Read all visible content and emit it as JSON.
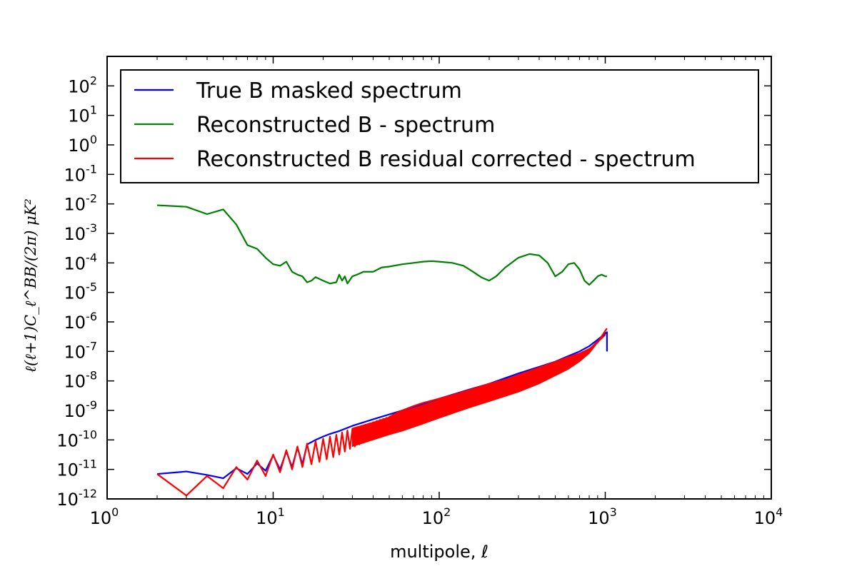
{
  "chart_data": {
    "type": "line",
    "title": "",
    "xlabel": "multipole, ℓ",
    "ylabel": "ℓ(ℓ+1)C_ℓ^BB/(2π)  μK²",
    "x_scale": "log",
    "y_scale": "log",
    "xlim": [
      1,
      10000
    ],
    "ylim": [
      1e-12,
      1000
    ],
    "x_ticks": [
      {
        "base": "10",
        "exp": "0"
      },
      {
        "base": "10",
        "exp": "1"
      },
      {
        "base": "10",
        "exp": "2"
      },
      {
        "base": "10",
        "exp": "3"
      },
      {
        "base": "10",
        "exp": "4"
      }
    ],
    "y_ticks": [
      {
        "base": "10",
        "exp": "-12"
      },
      {
        "base": "10",
        "exp": "-11"
      },
      {
        "base": "10",
        "exp": "-10"
      },
      {
        "base": "10",
        "exp": "-9"
      },
      {
        "base": "10",
        "exp": "-8"
      },
      {
        "base": "10",
        "exp": "-7"
      },
      {
        "base": "10",
        "exp": "-6"
      },
      {
        "base": "10",
        "exp": "-5"
      },
      {
        "base": "10",
        "exp": "-4"
      },
      {
        "base": "10",
        "exp": "-3"
      },
      {
        "base": "10",
        "exp": "-2"
      },
      {
        "base": "10",
        "exp": "-1"
      },
      {
        "base": "10",
        "exp": "0"
      },
      {
        "base": "10",
        "exp": "1"
      },
      {
        "base": "10",
        "exp": "2"
      }
    ],
    "legend": {
      "placement": "top-left",
      "frame": true
    },
    "series": [
      {
        "name": "True B masked spectrum",
        "color": "#0000ff",
        "x": [
          2,
          3,
          4,
          5,
          6,
          7,
          8,
          9,
          10,
          11,
          12,
          13,
          14,
          15,
          16,
          18,
          20,
          22,
          25,
          30,
          40,
          60,
          100,
          150,
          200,
          300,
          400,
          500,
          600,
          700,
          800,
          900,
          1000,
          1024,
          1024
        ],
        "y": [
          7e-12,
          8.5e-12,
          6.5e-12,
          5e-12,
          1.1e-11,
          7e-12,
          1.6e-11,
          9e-12,
          3e-11,
          1e-11,
          4e-11,
          1.2e-11,
          5.5e-11,
          1.5e-11,
          7e-11,
          1e-10,
          1.3e-10,
          1.6e-10,
          2e-10,
          3e-10,
          5e-10,
          1e-09,
          2.5e-09,
          5e-09,
          8e-09,
          1.8e-08,
          3e-08,
          4.5e-08,
          7e-08,
          1e-07,
          1.5e-07,
          2.5e-07,
          4e-07,
          4.5e-07,
          1e-07
        ]
      },
      {
        "name": "Reconstructed B - spectrum",
        "color": "#008000",
        "x": [
          2,
          3,
          4,
          5,
          6,
          7,
          8,
          9,
          10,
          11,
          12,
          13,
          14,
          15,
          16,
          17,
          18,
          20,
          22,
          24,
          25,
          26,
          27,
          28,
          30,
          32,
          35,
          40,
          45,
          50,
          60,
          70,
          80,
          90,
          100,
          120,
          140,
          160,
          180,
          200,
          220,
          250,
          300,
          350,
          400,
          450,
          500,
          550,
          600,
          650,
          700,
          750,
          800,
          850,
          900,
          950,
          1000,
          1024
        ],
        "y": [
          0.009,
          0.008,
          0.0045,
          0.0065,
          0.002,
          0.0004,
          0.0003,
          0.00015,
          9e-05,
          8e-05,
          0.00011,
          5e-05,
          4e-05,
          3.5e-05,
          2.2e-05,
          2.5e-05,
          3.3e-05,
          2.5e-05,
          2e-05,
          2.2e-05,
          4e-05,
          2.5e-05,
          3.5e-05,
          2e-05,
          3.5e-05,
          4e-05,
          5e-05,
          5e-05,
          7e-05,
          7.5e-05,
          9e-05,
          0.0001,
          0.00011,
          0.000115,
          0.00011,
          0.0001,
          8e-05,
          5e-05,
          3.2e-05,
          2.5e-05,
          3.5e-05,
          7e-05,
          0.00015,
          0.0002,
          0.00018,
          0.0001,
          3.5e-05,
          5e-05,
          9e-05,
          0.0001,
          6e-05,
          2.5e-05,
          1.8e-05,
          2.5e-05,
          3.5e-05,
          4e-05,
          3.5e-05,
          3.5e-05
        ]
      },
      {
        "name": "Reconstructed B residual corrected - spectrum",
        "color": "#ff0000",
        "x": [
          2,
          3,
          4,
          5,
          6,
          7,
          8,
          9,
          10,
          11,
          12,
          13,
          14,
          15,
          16,
          17,
          18,
          19,
          20,
          21,
          22,
          23,
          24,
          25,
          26,
          27,
          28,
          29,
          30,
          31,
          32,
          33,
          34,
          35,
          36,
          37,
          38,
          39,
          40,
          41,
          42,
          43,
          44,
          45,
          46,
          47,
          48,
          49,
          50,
          55,
          60,
          70,
          80,
          100,
          120,
          150,
          200,
          250,
          300,
          400,
          500,
          600,
          700,
          800,
          900,
          1000,
          1024
        ],
        "y": [
          7e-12,
          1.3e-12,
          6e-12,
          2.3e-12,
          1.2e-11,
          4.5e-12,
          2e-11,
          6e-12,
          3.2e-11,
          8e-12,
          4.5e-11,
          1e-11,
          6e-11,
          1.2e-11,
          7.5e-11,
          1.5e-11,
          9e-11,
          1.8e-11,
          1.1e-10,
          2.2e-11,
          1.3e-10,
          2.6e-11,
          1.5e-10,
          3.2e-11,
          1.8e-10,
          4e-11,
          2.1e-10,
          5e-11,
          2.4e-10,
          6e-11,
          2.7e-10,
          7e-11,
          3e-10,
          8e-11,
          3.3e-10,
          9e-11,
          3.6e-10,
          1e-10,
          4e-10,
          1.1e-10,
          4.4e-10,
          1.2e-10,
          4.8e-10,
          1.3e-10,
          5.2e-10,
          1.4e-10,
          5.6e-10,
          1.5e-10,
          6e-10,
          8e-10,
          1e-09,
          1.4e-09,
          1.8e-09,
          2.5e-09,
          3.3e-09,
          4.8e-09,
          8e-09,
          1.1e-08,
          1.6e-08,
          2.8e-08,
          4.4e-08,
          6.4e-08,
          8.5e-08,
          1.2e-07,
          2e-07,
          5e-07,
          6e-07
        ]
      }
    ],
    "band": {
      "series_index": 2,
      "x": [
        30,
        40,
        50,
        60,
        80,
        100,
        150,
        200,
        300,
        400,
        500,
        600,
        700,
        800,
        900,
        1000
      ],
      "lower": [
        6e-11,
        1e-10,
        1.5e-10,
        2e-10,
        3.5e-10,
        5.5e-10,
        1.2e-09,
        2e-09,
        4.2e-09,
        8e-09,
        1.5e-08,
        2.5e-08,
        4.5e-08,
        8.5e-08,
        2e-07,
        3.5e-07
      ],
      "upper": [
        2.5e-10,
        4e-10,
        6e-10,
        1e-09,
        1.6e-09,
        2.4e-09,
        4.8e-09,
        8e-09,
        1.6e-08,
        2.8e-08,
        4.4e-08,
        6.4e-08,
        8.5e-08,
        1.2e-07,
        2.3e-07,
        5e-07
      ]
    }
  }
}
